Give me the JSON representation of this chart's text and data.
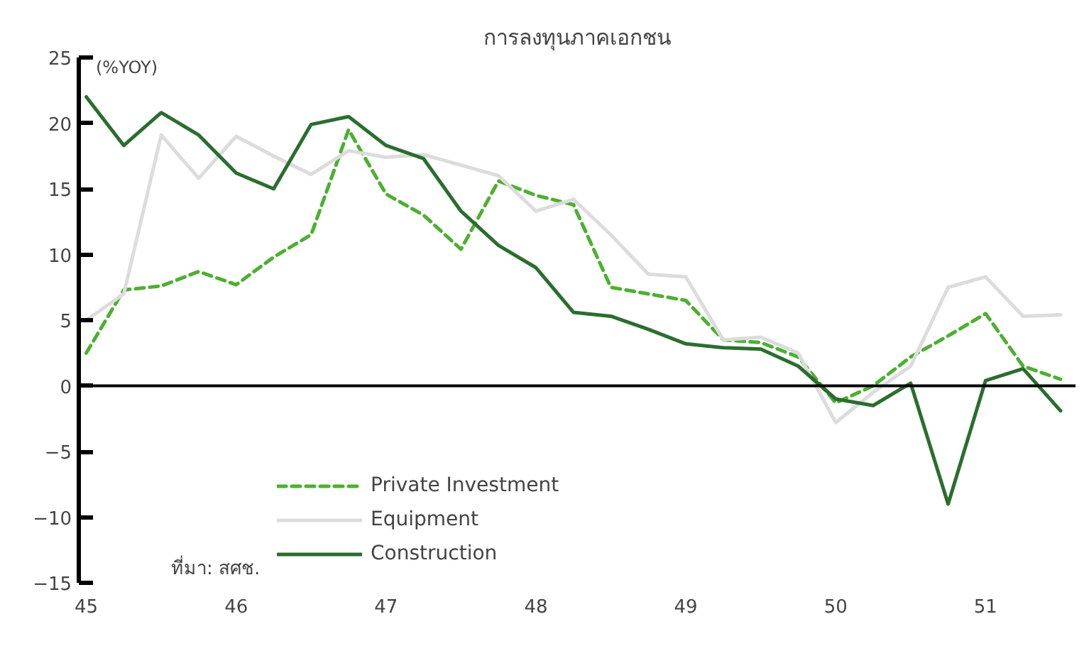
{
  "chart_data": {
    "type": "line",
    "title": "การลงทุนภาคเอกชน",
    "ylabel": "(%YOY)",
    "x": [
      45,
      45.25,
      45.5,
      45.75,
      46,
      46.25,
      46.5,
      46.75,
      47,
      47.25,
      47.5,
      47.75,
      48,
      48.25,
      48.5,
      48.75,
      49,
      49.25,
      49.5,
      49.75,
      50,
      50.25,
      50.5,
      50.75,
      51,
      51.25,
      51.5
    ],
    "series": [
      {
        "name": "Private Investment",
        "color": "#4cb030",
        "line_style": "dashed",
        "values": [
          2.5,
          7.3,
          7.6,
          8.7,
          7.7,
          9.8,
          11.5,
          19.5,
          14.6,
          13.0,
          10.4,
          15.6,
          14.5,
          13.8,
          7.5,
          7.0,
          6.5,
          3.5,
          3.3,
          2.2,
          -1.3,
          0,
          2.2,
          3.8,
          5.5,
          1.5,
          0.5
        ]
      },
      {
        "name": "Equipment",
        "color": "#dcdcdc",
        "line_style": "solid",
        "values": [
          5.0,
          7.0,
          19.1,
          15.8,
          19.0,
          17.5,
          16.1,
          17.9,
          17.4,
          17.6,
          16.8,
          16.0,
          13.3,
          14.2,
          11.5,
          8.5,
          8.3,
          3.5,
          3.7,
          2.5,
          -2.8,
          -0.5,
          1.5,
          7.5,
          8.3,
          5.3,
          5.4
        ]
      },
      {
        "name": "Construction",
        "color": "#2a6e2e",
        "line_style": "solid",
        "values": [
          22.0,
          18.3,
          20.8,
          19.1,
          16.2,
          15.0,
          19.9,
          20.5,
          18.3,
          17.3,
          13.3,
          10.7,
          9.0,
          5.6,
          5.3,
          4.3,
          3.2,
          2.9,
          2.8,
          1.5,
          -1.0,
          -1.5,
          0.2,
          -9.0,
          0.4,
          1.3,
          -1.9
        ]
      }
    ],
    "xlim": [
      44.95,
      51.6
    ],
    "xticks": [
      45,
      46,
      47,
      48,
      49,
      50,
      51
    ],
    "ylim": [
      -15,
      25
    ],
    "yticks": [
      -15,
      -10,
      -5,
      0,
      5,
      10,
      15,
      20,
      25
    ],
    "ref_lines": [
      {
        "axis": "y",
        "value": 0,
        "color": "#000000"
      }
    ],
    "grid": false,
    "legend": "bottom",
    "marker": "none",
    "annotations": [
      "ที่มา: สศช."
    ]
  }
}
